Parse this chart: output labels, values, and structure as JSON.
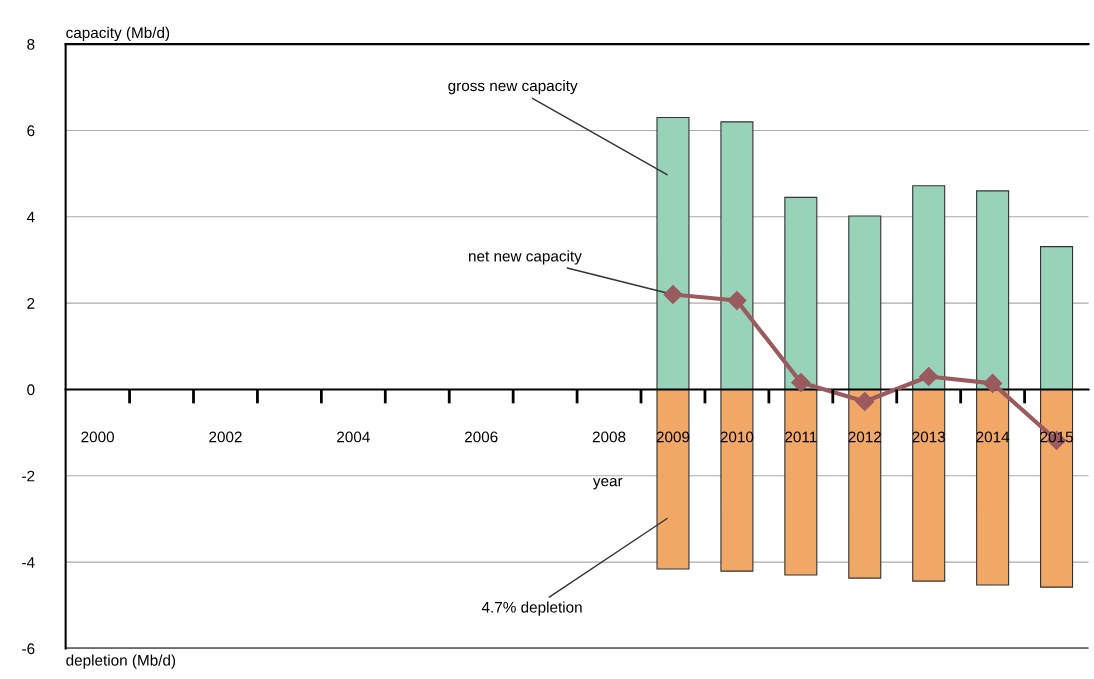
{
  "chart_data": {
    "type": "bar",
    "ylabel": "capacity (Mb/d)",
    "xlabel": "year",
    "categories": [
      "2000",
      null,
      "2002",
      null,
      "2004",
      null,
      "2006",
      null,
      "2008",
      "2009",
      "2010",
      "2011",
      "2012",
      "2013",
      "2014",
      "2015"
    ],
    "series": [
      {
        "color": "#97d2b9",
        "values": [
          null,
          null,
          null,
          null,
          null,
          null,
          null,
          null,
          null,
          6.3,
          6.2,
          4.45,
          4.02,
          4.72,
          4.6,
          3.31
        ]
      },
      {
        "color": "#f1a765",
        "values": [
          null,
          null,
          null,
          null,
          null,
          null,
          null,
          null,
          null,
          -4.16,
          -4.21,
          -4.3,
          -4.37,
          -4.44,
          -4.53,
          -4.58
        ]
      },
      {
        "type": "line",
        "color": "#9b5a5e",
        "marker": "diamond",
        "line_style": "solid",
        "values": [
          null,
          null,
          null,
          null,
          null,
          null,
          null,
          null,
          null,
          2.2,
          2.06,
          0.16,
          -0.28,
          0.3,
          0.14,
          -1.18
        ]
      }
    ],
    "ylim": [
      -6,
      8
    ],
    "yticks": [
      -6,
      -4,
      -2,
      0,
      2,
      4,
      6,
      8
    ],
    "grid": "y",
    "legend": false,
    "annotations": [
      "gross new capacity",
      {
        "text": "net new capacity",
        "x": "2009",
        "y": 2.2
      },
      "4.7% depletion",
      "depletion (Mb/d)"
    ]
  }
}
